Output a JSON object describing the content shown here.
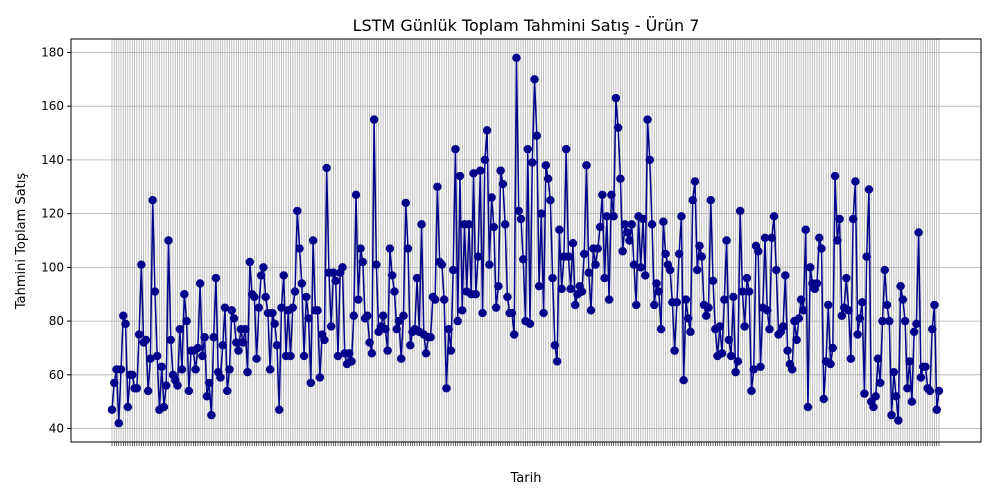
{
  "chart_data": {
    "type": "line",
    "title": "LSTM Günlük Toplam Tahmini Satış - Ürün 7",
    "xlabel": "Tarih",
    "ylabel": "Tahmini Toplam Satış",
    "ylim": [
      35,
      185
    ],
    "yticks": [
      40,
      60,
      80,
      100,
      120,
      140,
      160,
      180
    ],
    "grid": true,
    "marker": "circle",
    "color": "#00008B",
    "series": [
      {
        "values": [
          47,
          57,
          62,
          42,
          62,
          82,
          79,
          48,
          60,
          60,
          55,
          55,
          75,
          101,
          72,
          73,
          54,
          66,
          125,
          91,
          67,
          47,
          63,
          48,
          56,
          110,
          73,
          60,
          58,
          56,
          77,
          62,
          90,
          80,
          54,
          69,
          69,
          62,
          70,
          94,
          67,
          74,
          52,
          57,
          45,
          74,
          96,
          61,
          59,
          71,
          85,
          54,
          62,
          84,
          81,
          72,
          69,
          77,
          72,
          77,
          61,
          102,
          90,
          89,
          66,
          85,
          97,
          100,
          89,
          83,
          62,
          83,
          79,
          71,
          47,
          85,
          97,
          67,
          84,
          67,
          85,
          91,
          121,
          107,
          94,
          67,
          89,
          81,
          57,
          110,
          84,
          84,
          59,
          75,
          73,
          137,
          98,
          78,
          98,
          95,
          67,
          98,
          100,
          68,
          64,
          68,
          65,
          82,
          127,
          88,
          107,
          102,
          81,
          82,
          72,
          68,
          155,
          101,
          76,
          78,
          82,
          77,
          69,
          107,
          97,
          91,
          77,
          80,
          66,
          82,
          124,
          107,
          71,
          76,
          77,
          96,
          76,
          116,
          75,
          68,
          74,
          74,
          89,
          88,
          130,
          102,
          101,
          88,
          55,
          77,
          69,
          99,
          144,
          80,
          134,
          84,
          116,
          91,
          116,
          90,
          135,
          90,
          104,
          136,
          83,
          140,
          151,
          101,
          126,
          115,
          85,
          93,
          136,
          131,
          116,
          89,
          83,
          83,
          75,
          178,
          121,
          118,
          103,
          80,
          144,
          79,
          139,
          170,
          149,
          93,
          120,
          83,
          138,
          133,
          125,
          96,
          71,
          65,
          114,
          92,
          104,
          144,
          104,
          92,
          109,
          86,
          90,
          93,
          91,
          105,
          138,
          98,
          84,
          107,
          101,
          107,
          115,
          127,
          96,
          119,
          88,
          127,
          119,
          163,
          152,
          133,
          106,
          116,
          113,
          110,
          116,
          101,
          86,
          119,
          100,
          118,
          97,
          155,
          140,
          116,
          86,
          94,
          91,
          77,
          117,
          105,
          101,
          99,
          87,
          69,
          87,
          105,
          119,
          58,
          88,
          81,
          76,
          125,
          132,
          99,
          108,
          104,
          86,
          82,
          85,
          125,
          95,
          77,
          67,
          78,
          68,
          88,
          110,
          73,
          67,
          89,
          61,
          65,
          121,
          91,
          78,
          96,
          91,
          54,
          62,
          108,
          106,
          63,
          85,
          111,
          84,
          77,
          111,
          119,
          99,
          75,
          76,
          78,
          97,
          69,
          64,
          62,
          80,
          73,
          81,
          88,
          84,
          114,
          48,
          100,
          94,
          92,
          94,
          111,
          107,
          51,
          65,
          86,
          64,
          70,
          134,
          110,
          118,
          82,
          85,
          96,
          84,
          66,
          118,
          132,
          75,
          81,
          87,
          53,
          104,
          129,
          50,
          48,
          52,
          66,
          57,
          80,
          99,
          86,
          80,
          45,
          61,
          52,
          43,
          93,
          88,
          80,
          55,
          65,
          50,
          76,
          79,
          113,
          59,
          63,
          63,
          55,
          54,
          77,
          86,
          47,
          54
        ]
      }
    ]
  }
}
